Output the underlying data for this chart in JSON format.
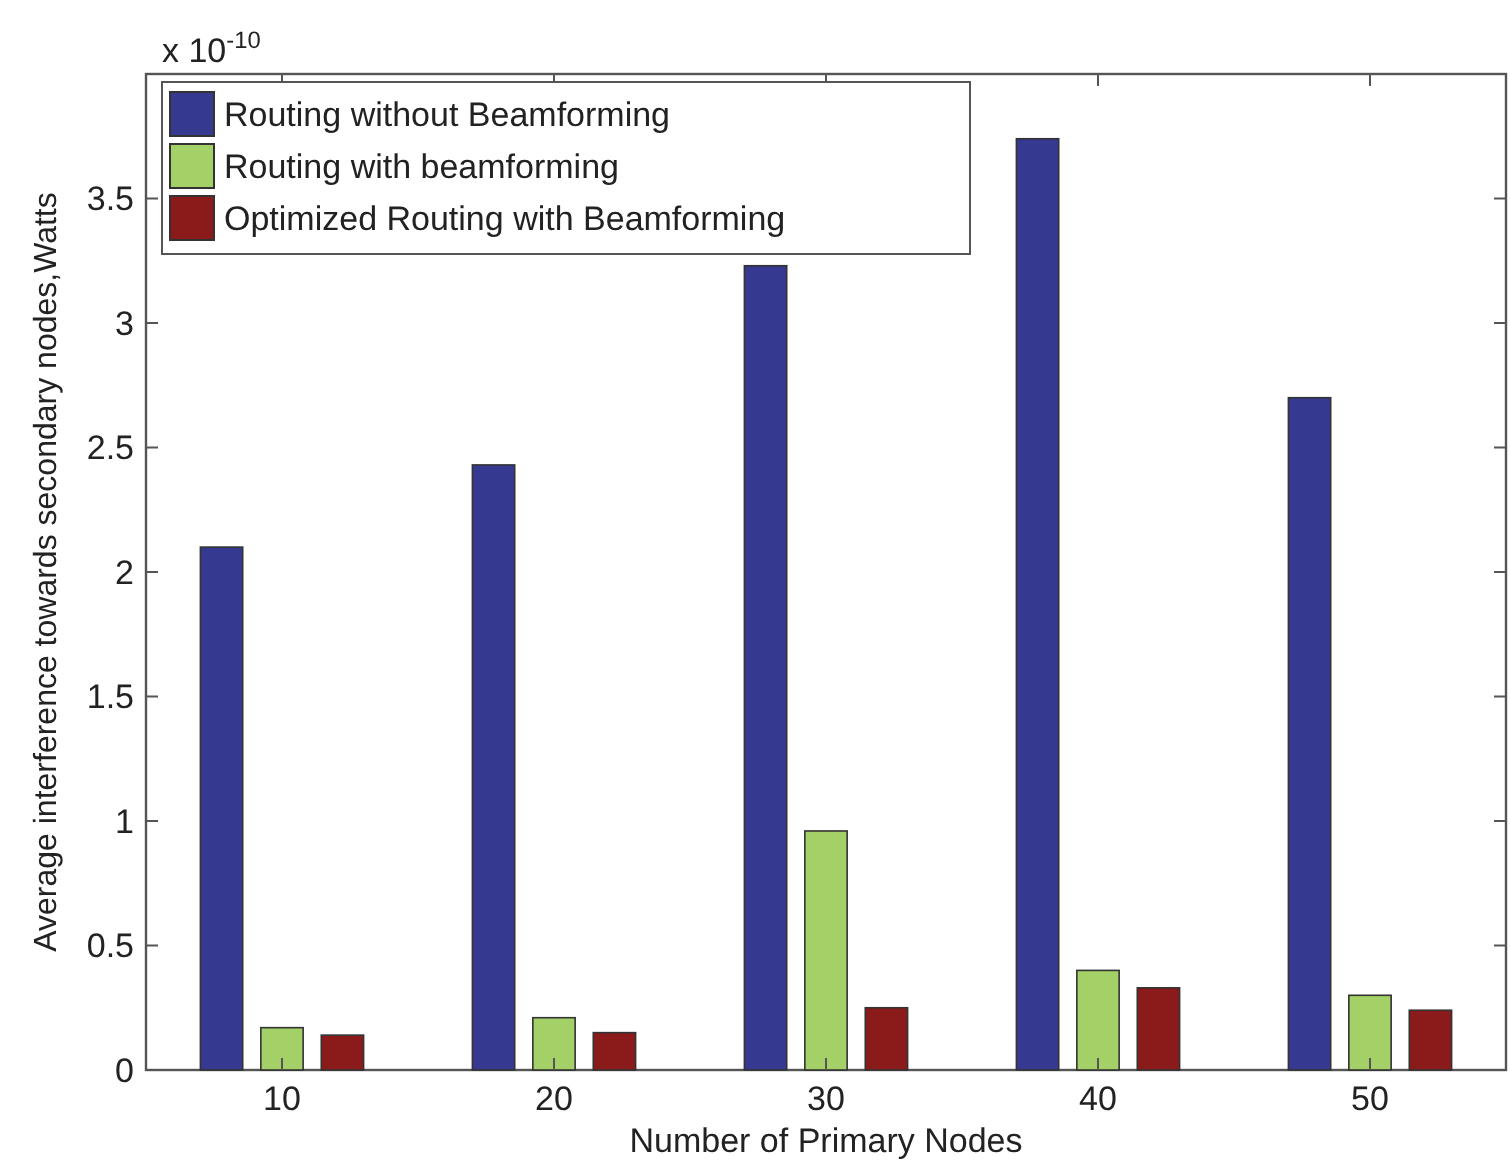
{
  "chart_data": {
    "type": "bar",
    "xlabel": "Number of Primary Nodes",
    "ylabel": "Average interference towards secondary nodes,Watts",
    "annotations": [
      "x 10$^{-10}$"
    ],
    "categories": [
      "10",
      "20",
      "30",
      "40",
      "50"
    ],
    "series": [
      {
        "name": "Routing without Beamforming",
        "color": "#363990",
        "values": [
          2.1,
          2.43,
          3.23,
          3.74,
          2.7
        ]
      },
      {
        "name": "Routing with beamforming",
        "color": "#a3d168",
        "values": [
          0.17,
          0.21,
          0.96,
          0.4,
          0.3
        ]
      },
      {
        "name": "Optimized Routing with Beamforming",
        "color": "#8b1a1a",
        "values": [
          0.14,
          0.15,
          0.25,
          0.33,
          0.24
        ]
      }
    ],
    "ylim": [
      0,
      4
    ],
    "yticks": [
      0,
      0.5,
      1,
      1.5,
      2,
      2.5,
      3,
      3.5
    ],
    "grid": false,
    "legend": "top left"
  }
}
